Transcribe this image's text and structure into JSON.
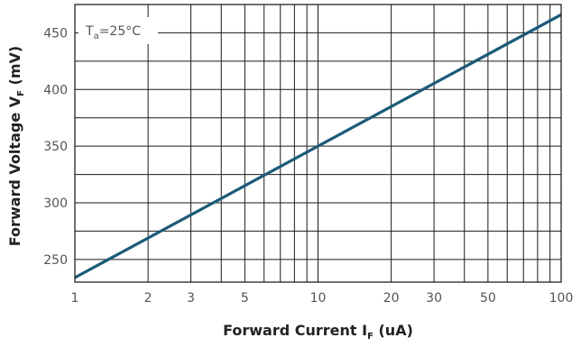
{
  "chart_data": {
    "type": "line",
    "x_scale": "log",
    "xlim": [
      1,
      100
    ],
    "ylim": [
      230,
      475
    ],
    "x_ticks": [
      1,
      2,
      3,
      5,
      10,
      20,
      30,
      50,
      100
    ],
    "x_tick_labels": [
      "1",
      "2",
      "3",
      "5",
      "10",
      "20",
      "30",
      "50",
      "100"
    ],
    "y_ticks": [
      250,
      300,
      350,
      400,
      450
    ],
    "y_tick_labels": [
      "250",
      "300",
      "350",
      "400",
      "450"
    ],
    "xlabel": {
      "main": "Forward Current I",
      "sub": "F",
      "tail": " (uA)"
    },
    "ylabel": {
      "main": "Forward Voltage V",
      "sub": "F",
      "tail": " (mV)"
    },
    "annotation": {
      "main": "T",
      "sub": "a",
      "tail": "=25°C"
    },
    "grid": true,
    "series_color": "#1c5a78",
    "series": [
      {
        "x": [
          1,
          100
        ],
        "y": [
          234,
          466
        ]
      }
    ]
  }
}
